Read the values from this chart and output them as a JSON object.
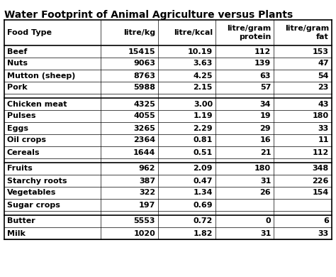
{
  "title": "Water Footprint of Animal Agriculture versus Plants",
  "columns": [
    "Food Type",
    "litre/kg",
    "litre/kcal",
    "litre/gram\nprotein",
    "litre/gram\nfat"
  ],
  "rows": [
    [
      "Beef",
      "15415",
      "10.19",
      "112",
      "153"
    ],
    [
      "Nuts",
      "9063",
      "3.63",
      "139",
      "47"
    ],
    [
      "Mutton (sheep)",
      "8763",
      "4.25",
      "63",
      "54"
    ],
    [
      "Pork",
      "5988",
      "2.15",
      "57",
      "23"
    ],
    [
      "",
      "",
      "",
      "",
      ""
    ],
    [
      "Chicken meat",
      "4325",
      "3.00",
      "34",
      "43"
    ],
    [
      "Pulses",
      "4055",
      "1.19",
      "19",
      "180"
    ],
    [
      "Eggs",
      "3265",
      "2.29",
      "29",
      "33"
    ],
    [
      "Oil crops",
      "2364",
      "0.81",
      "16",
      "11"
    ],
    [
      "Cereals",
      "1644",
      "0.51",
      "21",
      "112"
    ],
    [
      "",
      "",
      "",
      "",
      ""
    ],
    [
      "Fruits",
      "962",
      "2.09",
      "180",
      "348"
    ],
    [
      "Starchy roots",
      "387",
      "0.47",
      "31",
      "226"
    ],
    [
      "Vegetables",
      "322",
      "1.34",
      "26",
      "154"
    ],
    [
      "Sugar crops",
      "197",
      "0.69",
      "",
      ""
    ],
    [
      "",
      "",
      "",
      "",
      ""
    ],
    [
      "Butter",
      "5553",
      "0.72",
      "0",
      "6"
    ],
    [
      "Milk",
      "1020",
      "1.82",
      "31",
      "33"
    ]
  ],
  "col_aligns": [
    "left",
    "right",
    "right",
    "right",
    "right"
  ],
  "separator_rows": [
    4,
    10,
    15
  ],
  "title_fontsize": 10,
  "cell_fontsize": 8,
  "header_fontsize": 8,
  "fig_width": 4.74,
  "fig_height": 3.9,
  "dpi": 100
}
